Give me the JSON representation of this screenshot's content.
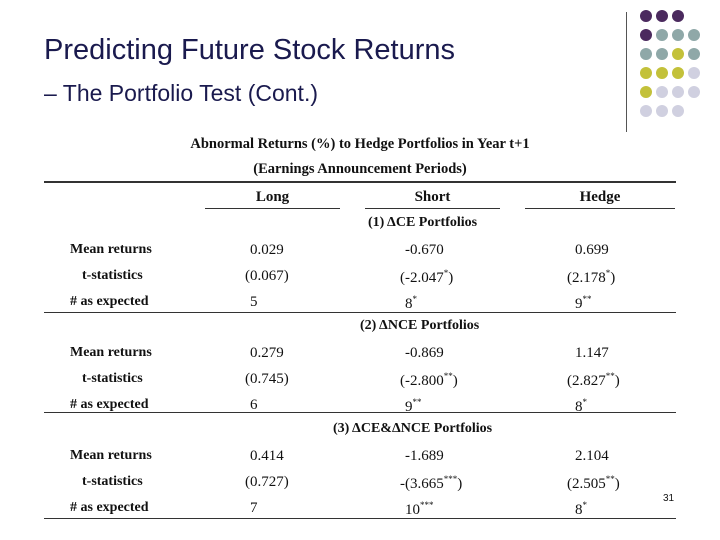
{
  "slide": {
    "title_line1": "Predicting Future Stock Returns",
    "title_line2": "– The Portfolio Test (Cont.)",
    "page_number": "31"
  },
  "table": {
    "title": "Abnormal Returns (%) to Hedge Portfolios in Year t+1",
    "subtitle": "(Earnings Announcement Periods)",
    "columns": [
      "Long",
      "Short",
      "Hedge"
    ],
    "sections": [
      {
        "label": "(1) ΔCE Portfolios",
        "rows": [
          {
            "label": "Mean returns",
            "long": "0.029",
            "short": "-0.670",
            "hedge": "0.699"
          },
          {
            "label": "t-statistics",
            "long": "(0.067)",
            "short": "(-2.047",
            "short_sup": "*",
            "short_tail": ")",
            "hedge": "(2.178",
            "hedge_sup": "*",
            "hedge_tail": ")"
          },
          {
            "label": "# as expected",
            "long": "5",
            "short": "8",
            "short_sup": "*",
            "hedge": "9",
            "hedge_sup": "**"
          }
        ]
      },
      {
        "label": "(2) ΔNCE Portfolios",
        "rows": [
          {
            "label": "Mean returns",
            "long": "0.279",
            "short": "-0.869",
            "hedge": "1.147"
          },
          {
            "label": "t-statistics",
            "long": "(0.745)",
            "short": "(-2.800",
            "short_sup": "**",
            "short_tail": ")",
            "hedge": "(2.827",
            "hedge_sup": "**",
            "hedge_tail": ")"
          },
          {
            "label": "# as expected",
            "long": "6",
            "short": "9",
            "short_sup": "**",
            "hedge": "8",
            "hedge_sup": "*"
          }
        ]
      },
      {
        "label": "(3) ΔCE&ΔNCE Portfolios",
        "rows": [
          {
            "label": "Mean returns",
            "long": "0.414",
            "short": "-1.689",
            "hedge": "2.104"
          },
          {
            "label": "t-statistics",
            "long": "(0.727)",
            "short": "-(3.665",
            "short_sup": "***",
            "short_tail": ")",
            "hedge": "(2.505",
            "hedge_sup": "**",
            "hedge_tail": ")"
          },
          {
            "label": "# as expected",
            "long": "7",
            "short": "10",
            "short_sup": "***",
            "hedge": "8",
            "hedge_sup": "*"
          }
        ]
      }
    ]
  },
  "decor_colors": {
    "purple": "#4b2a5e",
    "teal": "#8fa8a8",
    "olive": "#c3c13a",
    "lavender": "#d0d0e0"
  }
}
